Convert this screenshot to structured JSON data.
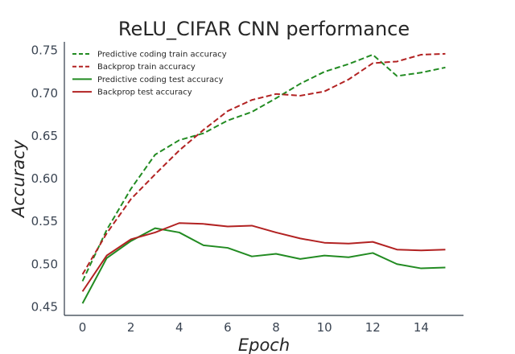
{
  "chart_data": {
    "type": "line",
    "title": "ReLU_CIFAR CNN performance",
    "xlabel": "Epoch",
    "ylabel": "Accuracy",
    "xlim": [
      -0.75,
      15.75
    ],
    "ylim": [
      0.44,
      0.76
    ],
    "xticks": [
      0,
      2,
      4,
      6,
      8,
      10,
      12,
      14
    ],
    "yticks": [
      0.45,
      0.5,
      0.55,
      0.6,
      0.65,
      0.7,
      0.75
    ],
    "grid": false,
    "legend_position": "top-left",
    "x": [
      0,
      1,
      2,
      3,
      4,
      5,
      6,
      7,
      8,
      9,
      10,
      11,
      12,
      13,
      14,
      15
    ],
    "series": [
      {
        "name": "Predictive coding train accuracy",
        "color": "#228b22",
        "dash": true,
        "values": [
          0.48,
          0.54,
          0.588,
          0.628,
          0.645,
          0.653,
          0.668,
          0.678,
          0.694,
          0.711,
          0.725,
          0.734,
          0.745,
          0.72,
          0.724,
          0.73
        ]
      },
      {
        "name": "Backprop train accuracy",
        "color": "#b22222",
        "dash": true,
        "values": [
          0.488,
          0.536,
          0.576,
          0.605,
          0.633,
          0.657,
          0.679,
          0.692,
          0.699,
          0.697,
          0.702,
          0.716,
          0.735,
          0.737,
          0.745,
          0.746
        ]
      },
      {
        "name": "Predictive coding test accuracy",
        "color": "#228b22",
        "dash": false,
        "values": [
          0.454,
          0.507,
          0.527,
          0.542,
          0.537,
          0.522,
          0.519,
          0.509,
          0.512,
          0.506,
          0.51,
          0.508,
          0.513,
          0.5,
          0.495,
          0.496
        ]
      },
      {
        "name": "Backprop test accuracy",
        "color": "#b22222",
        "dash": false,
        "values": [
          0.468,
          0.51,
          0.529,
          0.537,
          0.548,
          0.547,
          0.544,
          0.545,
          0.537,
          0.53,
          0.525,
          0.524,
          0.526,
          0.517,
          0.516,
          0.517
        ]
      }
    ]
  }
}
